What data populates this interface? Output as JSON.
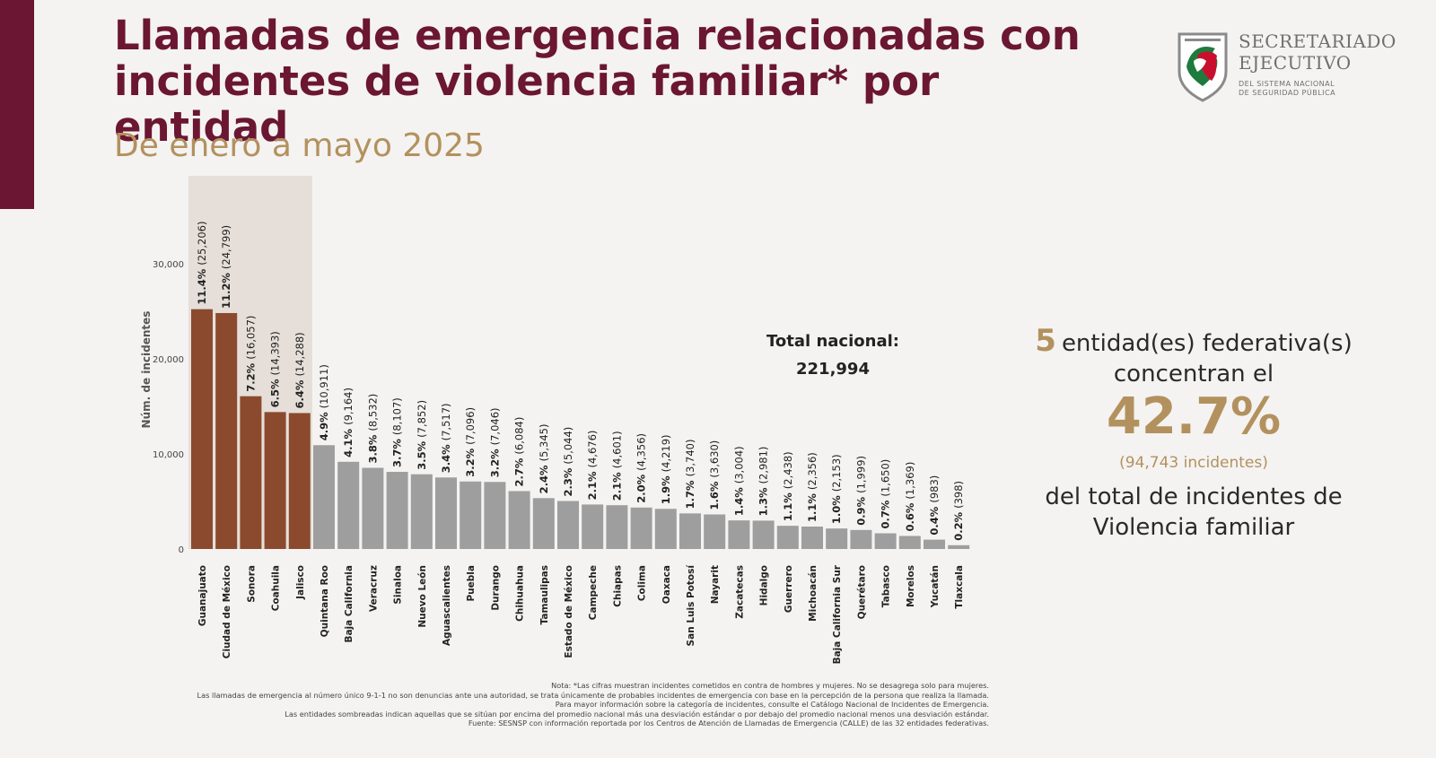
{
  "title": {
    "line1": "Llamadas de emergencia relacionadas  con",
    "line2": "incidentes de violencia familiar* por entidad"
  },
  "subtitle": "De enero a mayo 2025",
  "logo": {
    "title_line1": "SECRETARIADO",
    "title_line2": "EJECUTIVO",
    "sub_line1": "DEL SISTEMA NACIONAL",
    "sub_line2": "DE SEGURIDAD PÚBLICA"
  },
  "colors": {
    "accent": "#6b1632",
    "gold": "#b3915e",
    "bar_highlight": "#8b4a2e",
    "bar_default": "#9e9e9e",
    "shade": "#e6dfd9"
  },
  "chart_data": {
    "type": "bar",
    "title": "",
    "xlabel": "",
    "ylabel": "Núm. de incidentes",
    "ylim": [
      0,
      39600
    ],
    "yticks": [
      0,
      10000,
      20000,
      30000
    ],
    "ytick_labels": [
      "0",
      "10,000",
      "20,000",
      "30,000"
    ],
    "grid": false,
    "categories": [
      "Guanajuato",
      "Ciudad de México",
      "Sonora",
      "Coahuila",
      "Jalisco",
      "Quintana Roo",
      "Baja California",
      "Veracruz",
      "Sinaloa",
      "Nuevo León",
      "Aguascalientes",
      "Puebla",
      "Durango",
      "Chihuahua",
      "Tamaulipas",
      "Estado de México",
      "Campeche",
      "Chiapas",
      "Colima",
      "Oaxaca",
      "San Luis Potosí",
      "Nayarit",
      "Zacatecas",
      "Hidalgo",
      "Guerrero",
      "Michoacán",
      "Baja California Sur",
      "Querétaro",
      "Tabasco",
      "Morelos",
      "Yucatán",
      "Tlaxcala"
    ],
    "values": [
      25206,
      24799,
      16057,
      14393,
      14288,
      10911,
      9164,
      8532,
      8107,
      7852,
      7517,
      7096,
      7046,
      6084,
      5345,
      5044,
      4676,
      4601,
      4356,
      4219,
      3740,
      3630,
      3004,
      2981,
      2438,
      2356,
      2153,
      1999,
      1650,
      1369,
      983,
      398
    ],
    "percent_labels": [
      "11.4%",
      "11.2%",
      "7.2%",
      "6.5%",
      "6.4%",
      "4.9%",
      "4.1%",
      "3.8%",
      "3.7%",
      "3.5%",
      "3.4%",
      "3.2%",
      "3.2%",
      "2.7%",
      "2.4%",
      "2.3%",
      "2.1%",
      "2.1%",
      "2.0%",
      "1.9%",
      "1.7%",
      "1.6%",
      "1.4%",
      "1.3%",
      "1.1%",
      "1.1%",
      "1.0%",
      "0.9%",
      "0.7%",
      "0.6%",
      "0.4%",
      "0.2%"
    ],
    "count_labels": [
      "(25,206)",
      "(24,799)",
      "(16,057)",
      "(14,393)",
      "(14,288)",
      "(10,911)",
      "(9,164)",
      "(8,532)",
      "(8,107)",
      "(7,852)",
      "(7,517)",
      "(7,096)",
      "(7,046)",
      "(6,084)",
      "(5,345)",
      "(5,044)",
      "(4,676)",
      "(4,601)",
      "(4,356)",
      "(4,219)",
      "(3,740)",
      "(3,630)",
      "(3,004)",
      "(2,981)",
      "(2,438)",
      "(2,356)",
      "(2,153)",
      "(1,999)",
      "(1,650)",
      "(1,369)",
      "(983)",
      "(398)"
    ],
    "highlighted_count": 5,
    "annotation_label": "Total nacional:",
    "annotation_value": "221,994"
  },
  "summary": {
    "count": "5",
    "line1_text": "entidad(es) federativa(s)",
    "line2": "concentran el",
    "percent": "42.7%",
    "incidents": "(94,743 incidentes)",
    "line4": "del total de incidentes de",
    "line5": "Violencia familiar"
  },
  "notes": [
    "Nota: *Las cifras muestran incidentes cometidos en contra de hombres y mujeres. No se desagrega solo para mujeres.",
    "Las llamadas de emergencia al número único 9-1-1 no son denuncias ante una autoridad, se trata únicamente de probables incidentes de emergencia con base en la percepción de la persona que realiza la llamada.",
    "Para mayor información sobre la categoría de incidentes, consulte el Catálogo Nacional de Incidentes de Emergencia.",
    "Las entidades sombreadas indican aquellas que se sitúan por encima del promedio nacional más una desviación estándar o por debajo del promedio nacional menos una desviación estándar.",
    "Fuente: SESNSP con información reportada por los Centros de Atención de Llamadas de Emergencia (CALLE) de las 32 entidades federativas."
  ]
}
